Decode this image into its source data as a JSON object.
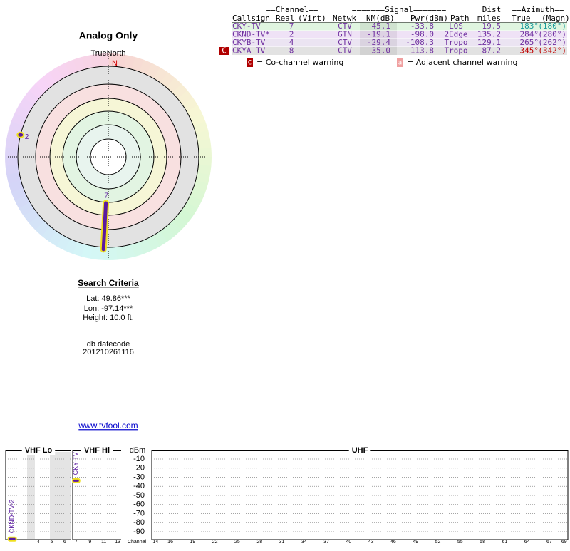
{
  "title": "Analog Only",
  "table": {
    "group_headers": [
      "==Channel==",
      "=======Signal=======",
      "Dist",
      "==Azimuth=="
    ],
    "headers": [
      "Callsign",
      "Real",
      "(Virt)",
      "Netwk",
      "NM(dB)",
      "Pwr(dBm)",
      "Path",
      "miles",
      "True",
      "(Magn)"
    ],
    "rows": [
      {
        "cells": [
          "CKY-TV",
          "7",
          "CTV",
          "45.1",
          "-33.8",
          "LOS",
          "19.5",
          "183°",
          "(180°)"
        ],
        "az_color": "#1a9a9a"
      },
      {
        "cells": [
          "CKND-TV*",
          "2",
          "GTN",
          "-19.1",
          "-98.0",
          "2Edge",
          "135.2",
          "284°",
          "(280°)"
        ],
        "az_color": "#7030a0"
      },
      {
        "cells": [
          "CKYB-TV",
          "4",
          "CTV",
          "-29.4",
          "-108.3",
          "Tropo",
          "129.1",
          "265°",
          "(262°)"
        ],
        "az_color": "#7030a0"
      },
      {
        "cells": [
          "CKYA-TV",
          "8",
          "CTV",
          "-35.0",
          "-113.8",
          "Tropo",
          "87.2",
          "345°",
          "(342°)"
        ],
        "az_color": "#c00000",
        "warning": "C"
      }
    ]
  },
  "legend": [
    {
      "symbol": "C",
      "text": "= Co-channel warning",
      "color": "#b00000"
    },
    {
      "symbol": "a",
      "text": "= Adjacent channel warning",
      "color": "#f0a0a0"
    }
  ],
  "search": {
    "title": "Search Criteria",
    "lines": [
      "Lat: 49.86***",
      "Lon: -97.14***",
      "Height: 10.0 ft."
    ]
  },
  "datecode": {
    "label": "db datecode",
    "value": "201210261116"
  },
  "link": "www.tvfool.com",
  "chart_data": [
    {
      "type": "polar",
      "north_label": "TrueNorth",
      "north": "N",
      "points": [
        {
          "label": "7",
          "azimuth": 183,
          "nm": 45.1,
          "color": "#5a1aa0"
        },
        {
          "label": "2",
          "azimuth": 284,
          "nm": -19.1,
          "color": "#5a1aa0"
        }
      ]
    },
    {
      "type": "spectrum",
      "sections": [
        "VHF Lo",
        "VHF Hi",
        "UHF"
      ],
      "ylabel": "dBm",
      "xlabel": "Channel",
      "ylim": [
        -100,
        0
      ],
      "yticks": [
        -10,
        -20,
        -30,
        -40,
        -50,
        -60,
        -70,
        -80,
        -90
      ],
      "grid": true,
      "xticks": [
        4,
        5,
        6,
        7,
        9,
        11,
        13,
        14,
        16,
        19,
        22,
        25,
        28,
        31,
        34,
        37,
        40,
        43,
        46,
        49,
        52,
        55,
        58,
        61,
        64,
        67,
        69
      ],
      "points": [
        {
          "name": "CKND-TV-2",
          "channel": 2,
          "value": -98.0,
          "color": "#5a1aa0"
        },
        {
          "name": "CKY-TV",
          "channel": 7,
          "value": -33.8,
          "color": "#5a1aa0"
        }
      ]
    }
  ]
}
